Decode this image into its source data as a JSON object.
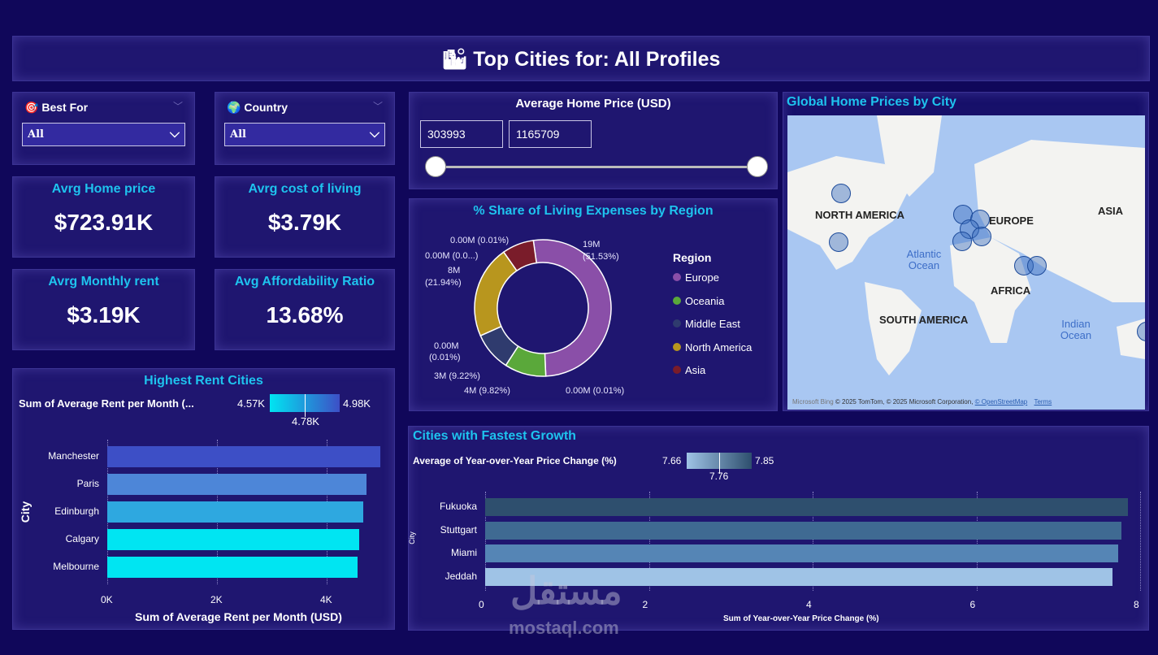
{
  "header": {
    "title": "Top Cities for: All Profiles",
    "icon": "city-icon"
  },
  "filters": [
    {
      "label": "Best For",
      "icon": "target-icon",
      "value": "All"
    },
    {
      "label": "Country",
      "icon": "globe-icon",
      "value": "All"
    }
  ],
  "kpis": [
    {
      "label": "Avrg Home price",
      "value": "$723.91K"
    },
    {
      "label": "Avrg cost of living",
      "value": "$3.79K"
    },
    {
      "label": "Avrg Monthly rent",
      "value": "$3.19K"
    },
    {
      "label": "Avg Affordability Ratio",
      "value": "13.68%"
    }
  ],
  "price_slider": {
    "title": "Average Home Price (USD)",
    "min": "303993",
    "max": "1165709",
    "range_fraction": [
      0,
      1
    ]
  },
  "map": {
    "title": "Global Home Prices by City",
    "labels": [
      "NORTH AMERICA",
      "EUROPE",
      "ASIA",
      "AFRICA",
      "SOUTH AMERICA"
    ],
    "oceans": [
      "Atlantic Ocean",
      "Indian Ocean"
    ],
    "attribution": "© 2025 TomTom, © 2025 Microsoft Corporation,",
    "osm": "© OpenStreetMap",
    "terms": "Terms",
    "bing": "Microsoft Bing"
  },
  "colors": {
    "europe": "#8a4fa8",
    "oceania": "#5aa83a",
    "middle_east": "#2f3b6e",
    "north_america": "#b8961e",
    "asia": "#7a1c2a"
  },
  "chart_data": [
    {
      "type": "pie",
      "title": "% Share of Living Expenses by Region",
      "legend_title": "Region",
      "legend_position": "right",
      "slices": [
        {
          "name": "Europe",
          "percent": 51.53,
          "color": "#8a4fa8"
        },
        {
          "name": "Oceania",
          "percent": 9.82,
          "color": "#5aa83a"
        },
        {
          "name": "Middle East",
          "percent": 9.22,
          "color": "#2f3b6e"
        },
        {
          "name": "North America",
          "percent": 21.94,
          "color": "#b8961e"
        },
        {
          "name": "Asia",
          "percent": 7.49,
          "color": "#7a1c2a"
        }
      ],
      "data_labels": [
        "19M",
        "(51.53%)",
        "0.00M (0.01%)",
        "4M (9.82%)",
        "3M (9.22%)",
        "0.00M",
        "(0.01%)",
        "8M",
        "(21.94%)",
        "0.00M (0.0...)",
        "0.00M (0.01%)"
      ]
    },
    {
      "type": "bar",
      "title": "Highest Rent Cities",
      "categories": [
        "Manchester",
        "Paris",
        "Edinburgh",
        "Calgary",
        "Melbourne"
      ],
      "values": [
        4.98,
        4.73,
        4.67,
        4.59,
        4.57
      ],
      "xlabel": "Sum of Average Rent per Month (USD)",
      "ylabel": "City",
      "xlim": [
        0,
        5
      ],
      "xticks": [
        "0K",
        "2K",
        "4K"
      ],
      "xtick_values": [
        0,
        2,
        4
      ],
      "colors": [
        "#3d4fc6",
        "#4d86d8",
        "#2ea8e0",
        "#00e5f2",
        "#00e5f2"
      ],
      "gradient_legend": {
        "label": "Sum of Average Rent per Month (...",
        "min": "4.57K",
        "mid": "4.78K",
        "max": "4.98K"
      }
    },
    {
      "type": "bar",
      "title": "Cities with Fastest Growth",
      "categories": [
        "Fukuoka",
        "Stuttgart",
        "Miami",
        "Jeddah"
      ],
      "values": [
        7.85,
        7.77,
        7.73,
        7.66
      ],
      "xlabel": "Sum of Year-over-Year Price Change (%)",
      "ylabel": "City",
      "xlim": [
        0,
        8
      ],
      "xticks": [
        "0",
        "2",
        "4",
        "6",
        "8"
      ],
      "xtick_values": [
        0,
        2,
        4,
        6,
        8
      ],
      "colors": [
        "#2e4f6e",
        "#3f6a92",
        "#5585b5",
        "#9fc3e6"
      ],
      "gradient_legend": {
        "label": "Average of Year-over-Year Price Change (%)",
        "min": "7.66",
        "mid": "7.76",
        "max": "7.85"
      }
    }
  ],
  "watermark": {
    "arabic": "مستقل",
    "latin": "mostaql.com"
  }
}
